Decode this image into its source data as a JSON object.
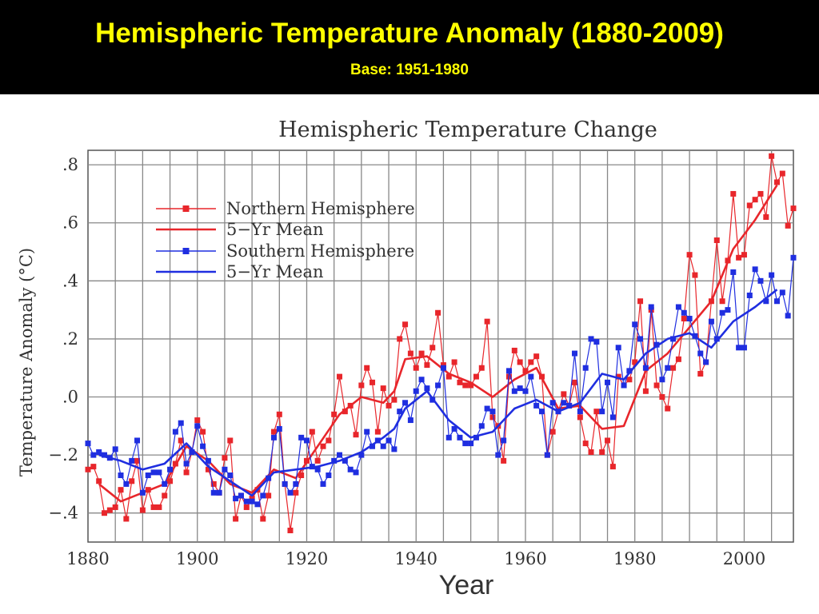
{
  "slide": {
    "title": "Hemispheric Temperature Anomaly (1880-2009)",
    "subtitle": "Base: 1951-1980"
  },
  "colors": {
    "north": "#e8262b",
    "south": "#1f2ee0",
    "grid": "#888888",
    "accent": "#ffff00"
  },
  "chart_data": {
    "type": "line",
    "title": "Hemispheric Temperature Change",
    "xlabel": "Year",
    "ylabel": "Temperature Anomaly (°C)",
    "xlim": [
      1880,
      2009
    ],
    "ylim": [
      -0.5,
      0.85
    ],
    "x_ticks": [
      1880,
      1900,
      1920,
      1940,
      1960,
      1980,
      2000
    ],
    "y_ticks": [
      -0.4,
      -0.2,
      0.0,
      0.2,
      0.4,
      0.6,
      0.8
    ],
    "y_tick_labels": [
      "−.4",
      "−.2",
      ".0",
      ".2",
      ".4",
      ".6",
      ".8"
    ],
    "grid": true,
    "legend_position": "top-left",
    "legend": [
      "Northern Hemisphere",
      "5−Yr Mean",
      "Southern Hemisphere",
      "5−Yr Mean"
    ],
    "series": [
      {
        "name": "Northern Hemisphere",
        "x": [
          1880,
          1881,
          1882,
          1883,
          1884,
          1885,
          1886,
          1887,
          1888,
          1889,
          1890,
          1891,
          1892,
          1893,
          1894,
          1895,
          1896,
          1897,
          1898,
          1899,
          1900,
          1901,
          1902,
          1903,
          1904,
          1905,
          1906,
          1907,
          1908,
          1909,
          1910,
          1911,
          1912,
          1913,
          1914,
          1915,
          1916,
          1917,
          1918,
          1919,
          1920,
          1921,
          1922,
          1923,
          1924,
          1925,
          1926,
          1927,
          1928,
          1929,
          1930,
          1931,
          1932,
          1933,
          1934,
          1935,
          1936,
          1937,
          1938,
          1939,
          1940,
          1941,
          1942,
          1943,
          1944,
          1945,
          1946,
          1947,
          1948,
          1949,
          1950,
          1951,
          1952,
          1953,
          1954,
          1955,
          1956,
          1957,
          1958,
          1959,
          1960,
          1961,
          1962,
          1963,
          1964,
          1965,
          1966,
          1967,
          1968,
          1969,
          1970,
          1971,
          1972,
          1973,
          1974,
          1975,
          1976,
          1977,
          1978,
          1979,
          1980,
          1981,
          1982,
          1983,
          1984,
          1985,
          1986,
          1987,
          1988,
          1989,
          1990,
          1991,
          1992,
          1993,
          1994,
          1995,
          1996,
          1997,
          1998,
          1999,
          2000,
          2001,
          2002,
          2003,
          2004,
          2005,
          2006,
          2007,
          2008,
          2009
        ],
        "values": [
          -0.25,
          -0.24,
          -0.29,
          -0.4,
          -0.39,
          -0.38,
          -0.32,
          -0.42,
          -0.29,
          -0.22,
          -0.39,
          -0.32,
          -0.38,
          -0.38,
          -0.34,
          -0.29,
          -0.23,
          -0.15,
          -0.26,
          -0.19,
          -0.08,
          -0.12,
          -0.25,
          -0.3,
          -0.33,
          -0.21,
          -0.15,
          -0.42,
          -0.34,
          -0.38,
          -0.35,
          -0.32,
          -0.42,
          -0.34,
          -0.12,
          -0.06,
          -0.3,
          -0.46,
          -0.33,
          -0.27,
          -0.22,
          -0.12,
          -0.22,
          -0.17,
          -0.15,
          -0.06,
          0.07,
          -0.05,
          -0.03,
          -0.13,
          0.04,
          0.1,
          0.05,
          -0.12,
          0.03,
          -0.03,
          -0.01,
          0.2,
          0.25,
          0.15,
          0.1,
          0.15,
          0.11,
          0.17,
          0.29,
          0.11,
          0.07,
          0.12,
          0.05,
          0.04,
          0.04,
          0.07,
          0.1,
          0.26,
          -0.07,
          -0.1,
          -0.22,
          0.07,
          0.16,
          0.12,
          0.09,
          0.12,
          0.14,
          0.07,
          -0.2,
          -0.12,
          -0.05,
          0.01,
          -0.03,
          0.05,
          -0.07,
          -0.16,
          -0.19,
          -0.05,
          -0.19,
          -0.15,
          -0.24,
          0.07,
          0.04,
          0.06,
          0.12,
          0.33,
          0.02,
          0.3,
          0.04,
          0.0,
          -0.04,
          0.1,
          0.13,
          0.27,
          0.49,
          0.42,
          0.08,
          0.12,
          0.33,
          0.54,
          0.33,
          0.47,
          0.7,
          0.48,
          0.49,
          0.66,
          0.68,
          0.7,
          0.62,
          0.83,
          0.74,
          0.77,
          0.59,
          0.65
        ]
      },
      {
        "name": "5−Yr Mean",
        "x": [
          1882,
          1886,
          1890,
          1894,
          1898,
          1902,
          1906,
          1910,
          1914,
          1918,
          1922,
          1926,
          1930,
          1934,
          1936,
          1938,
          1942,
          1946,
          1950,
          1954,
          1958,
          1962,
          1966,
          1970,
          1974,
          1978,
          1982,
          1986,
          1990,
          1994,
          1998,
          2002,
          2006
        ],
        "values": [
          -0.3,
          -0.36,
          -0.33,
          -0.3,
          -0.17,
          -0.22,
          -0.3,
          -0.33,
          -0.25,
          -0.28,
          -0.17,
          -0.06,
          0.0,
          -0.02,
          0.02,
          0.13,
          0.14,
          0.08,
          0.05,
          0.0,
          0.06,
          0.1,
          -0.04,
          -0.03,
          -0.11,
          -0.1,
          0.09,
          0.15,
          0.24,
          0.33,
          0.51,
          0.61,
          0.73
        ]
      },
      {
        "name": "Southern Hemisphere",
        "x": [
          1880,
          1881,
          1882,
          1883,
          1884,
          1885,
          1886,
          1887,
          1888,
          1889,
          1890,
          1891,
          1892,
          1893,
          1894,
          1895,
          1896,
          1897,
          1898,
          1899,
          1900,
          1901,
          1902,
          1903,
          1904,
          1905,
          1906,
          1907,
          1908,
          1909,
          1910,
          1911,
          1912,
          1913,
          1914,
          1915,
          1916,
          1917,
          1918,
          1919,
          1920,
          1921,
          1922,
          1923,
          1924,
          1925,
          1926,
          1927,
          1928,
          1929,
          1930,
          1931,
          1932,
          1933,
          1934,
          1935,
          1936,
          1937,
          1938,
          1939,
          1940,
          1941,
          1942,
          1943,
          1944,
          1945,
          1946,
          1947,
          1948,
          1949,
          1950,
          1951,
          1952,
          1953,
          1954,
          1955,
          1956,
          1957,
          1958,
          1959,
          1960,
          1961,
          1962,
          1963,
          1964,
          1965,
          1966,
          1967,
          1968,
          1969,
          1970,
          1971,
          1972,
          1973,
          1974,
          1975,
          1976,
          1977,
          1978,
          1979,
          1980,
          1981,
          1982,
          1983,
          1984,
          1985,
          1986,
          1987,
          1988,
          1989,
          1990,
          1991,
          1992,
          1993,
          1994,
          1995,
          1996,
          1997,
          1998,
          1999,
          2000,
          2001,
          2002,
          2003,
          2004,
          2005,
          2006,
          2007,
          2008,
          2009
        ],
        "values": [
          -0.16,
          -0.2,
          -0.19,
          -0.2,
          -0.21,
          -0.18,
          -0.27,
          -0.3,
          -0.22,
          -0.15,
          -0.33,
          -0.27,
          -0.26,
          -0.26,
          -0.3,
          -0.25,
          -0.12,
          -0.09,
          -0.23,
          -0.19,
          -0.1,
          -0.17,
          -0.22,
          -0.33,
          -0.33,
          -0.25,
          -0.27,
          -0.35,
          -0.34,
          -0.36,
          -0.36,
          -0.37,
          -0.34,
          -0.28,
          -0.14,
          -0.11,
          -0.3,
          -0.33,
          -0.3,
          -0.14,
          -0.15,
          -0.24,
          -0.25,
          -0.3,
          -0.27,
          -0.22,
          -0.2,
          -0.22,
          -0.25,
          -0.26,
          -0.2,
          -0.12,
          -0.17,
          -0.15,
          -0.17,
          -0.15,
          -0.18,
          -0.05,
          -0.02,
          -0.08,
          0.02,
          0.06,
          0.03,
          -0.01,
          0.04,
          0.1,
          -0.14,
          -0.11,
          -0.14,
          -0.16,
          -0.16,
          -0.14,
          -0.1,
          -0.04,
          -0.05,
          -0.2,
          -0.15,
          0.09,
          0.02,
          0.03,
          0.02,
          0.07,
          -0.03,
          -0.05,
          -0.2,
          -0.02,
          -0.05,
          -0.02,
          -0.03,
          0.15,
          -0.05,
          0.1,
          0.2,
          0.19,
          -0.05,
          0.05,
          -0.07,
          0.17,
          0.04,
          0.09,
          0.25,
          0.2,
          0.1,
          0.31,
          0.18,
          0.06,
          0.1,
          0.2,
          0.31,
          0.29,
          0.27,
          0.21,
          0.15,
          0.12,
          0.26,
          0.2,
          0.29,
          0.3,
          0.43,
          0.17,
          0.17,
          0.35,
          0.44,
          0.4,
          0.33,
          0.42,
          0.33,
          0.36,
          0.28,
          0.48
        ]
      },
      {
        "name": "5−Yr Mean",
        "x": [
          1882,
          1886,
          1890,
          1894,
          1898,
          1902,
          1906,
          1910,
          1914,
          1918,
          1922,
          1926,
          1930,
          1934,
          1936,
          1938,
          1942,
          1946,
          1950,
          1954,
          1958,
          1962,
          1966,
          1970,
          1974,
          1978,
          1982,
          1986,
          1990,
          1994,
          1998,
          2002,
          2006
        ],
        "values": [
          -0.2,
          -0.22,
          -0.25,
          -0.23,
          -0.16,
          -0.24,
          -0.29,
          -0.34,
          -0.26,
          -0.25,
          -0.24,
          -0.22,
          -0.19,
          -0.14,
          -0.11,
          -0.04,
          0.02,
          -0.08,
          -0.14,
          -0.12,
          -0.04,
          -0.01,
          -0.05,
          -0.02,
          0.08,
          0.06,
          0.15,
          0.2,
          0.22,
          0.17,
          0.26,
          0.31,
          0.37
        ]
      }
    ]
  }
}
